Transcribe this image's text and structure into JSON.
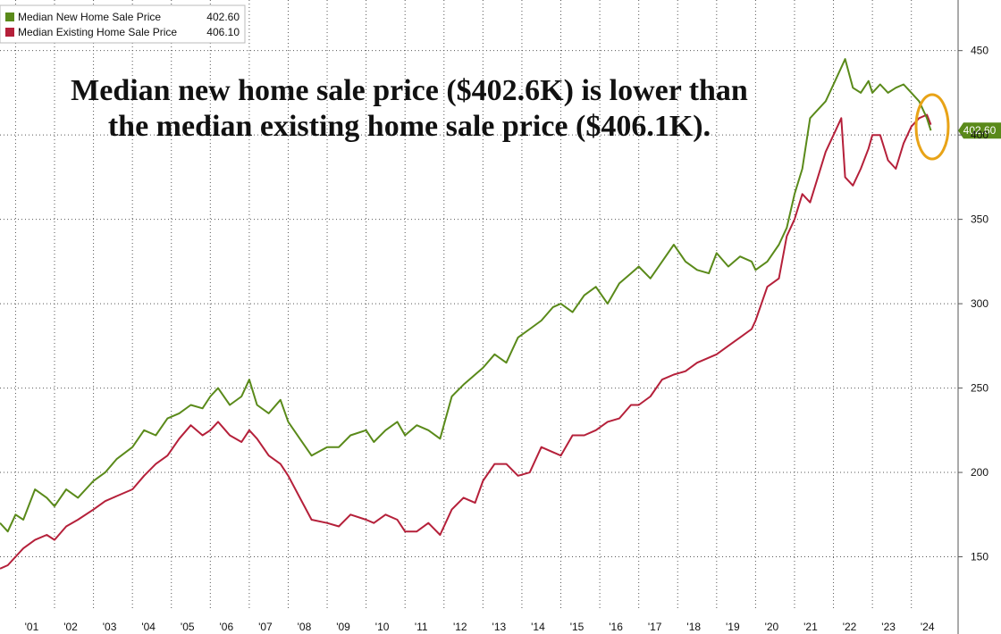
{
  "chart_data": {
    "type": "line",
    "title": "",
    "annotation": [
      "Median new home sale price ($402.6K) is lower than",
      "the median existing home sale price ($406.1K)."
    ],
    "xlabel": "",
    "ylabel": "",
    "ylim": [
      118,
      480
    ],
    "xlim": [
      2000.6,
      2025.2
    ],
    "y_ticks": [
      150,
      200,
      250,
      300,
      350,
      400,
      450
    ],
    "x_ticks": [
      {
        "year": 2001,
        "label": "'01"
      },
      {
        "year": 2002,
        "label": "'02"
      },
      {
        "year": 2003,
        "label": "'03"
      },
      {
        "year": 2004,
        "label": "'04"
      },
      {
        "year": 2005,
        "label": "'05"
      },
      {
        "year": 2006,
        "label": "'06"
      },
      {
        "year": 2007,
        "label": "'07"
      },
      {
        "year": 2008,
        "label": "'08"
      },
      {
        "year": 2009,
        "label": "'09"
      },
      {
        "year": 2010,
        "label": "'10"
      },
      {
        "year": 2011,
        "label": "'11"
      },
      {
        "year": 2012,
        "label": "'12"
      },
      {
        "year": 2013,
        "label": "'13"
      },
      {
        "year": 2014,
        "label": "'14"
      },
      {
        "year": 2015,
        "label": "'15"
      },
      {
        "year": 2016,
        "label": "'16"
      },
      {
        "year": 2017,
        "label": "'17"
      },
      {
        "year": 2018,
        "label": "'18"
      },
      {
        "year": 2019,
        "label": "'19"
      },
      {
        "year": 2020,
        "label": "'20"
      },
      {
        "year": 2021,
        "label": "'21"
      },
      {
        "year": 2022,
        "label": "'22"
      },
      {
        "year": 2023,
        "label": "'23"
      },
      {
        "year": 2024,
        "label": "'24"
      }
    ],
    "legend_position": "top-left",
    "series": [
      {
        "name": "Median New Home Sale Price",
        "last_value_label": "402.60",
        "color": "#5a8a1a",
        "x": [
          2000.6,
          2000.8,
          2001.0,
          2001.2,
          2001.5,
          2001.8,
          2002.0,
          2002.3,
          2002.6,
          2003.0,
          2003.3,
          2003.6,
          2004.0,
          2004.3,
          2004.6,
          2004.9,
          2005.2,
          2005.5,
          2005.8,
          2006.0,
          2006.2,
          2006.5,
          2006.8,
          2007.0,
          2007.2,
          2007.5,
          2007.8,
          2008.0,
          2008.3,
          2008.6,
          2009.0,
          2009.3,
          2009.6,
          2010.0,
          2010.2,
          2010.5,
          2010.8,
          2011.0,
          2011.3,
          2011.6,
          2011.9,
          2012.2,
          2012.5,
          2012.8,
          2013.0,
          2013.3,
          2013.6,
          2013.9,
          2014.2,
          2014.5,
          2014.8,
          2015.0,
          2015.3,
          2015.6,
          2015.9,
          2016.2,
          2016.5,
          2016.8,
          2017.0,
          2017.3,
          2017.6,
          2017.9,
          2018.2,
          2018.5,
          2018.8,
          2019.0,
          2019.3,
          2019.6,
          2019.9,
          2020.0,
          2020.3,
          2020.6,
          2020.8,
          2021.0,
          2021.2,
          2021.4,
          2021.6,
          2021.8,
          2022.0,
          2022.2,
          2022.3,
          2022.5,
          2022.7,
          2022.9,
          2023.0,
          2023.2,
          2023.4,
          2023.6,
          2023.8,
          2024.0,
          2024.2,
          2024.4,
          2024.5
        ],
        "values": [
          170,
          165,
          175,
          172,
          190,
          185,
          180,
          190,
          185,
          195,
          200,
          208,
          215,
          225,
          222,
          232,
          235,
          240,
          238,
          245,
          250,
          240,
          245,
          255,
          240,
          235,
          243,
          230,
          220,
          210,
          215,
          215,
          222,
          225,
          218,
          225,
          230,
          222,
          228,
          225,
          220,
          245,
          252,
          258,
          262,
          270,
          265,
          280,
          285,
          290,
          298,
          300,
          295,
          305,
          310,
          300,
          312,
          318,
          322,
          315,
          325,
          335,
          325,
          320,
          318,
          330,
          322,
          328,
          325,
          320,
          325,
          335,
          345,
          365,
          380,
          410,
          415,
          420,
          430,
          440,
          445,
          428,
          425,
          432,
          425,
          430,
          425,
          428,
          430,
          425,
          420,
          410,
          402.6
        ]
      },
      {
        "name": "Median Existing Home Sale Price",
        "last_value_label": "406.10",
        "color": "#b5203a",
        "x": [
          2000.6,
          2000.8,
          2001.0,
          2001.2,
          2001.5,
          2001.8,
          2002.0,
          2002.3,
          2002.6,
          2003.0,
          2003.3,
          2003.6,
          2004.0,
          2004.3,
          2004.6,
          2004.9,
          2005.2,
          2005.5,
          2005.8,
          2006.0,
          2006.2,
          2006.5,
          2006.8,
          2007.0,
          2007.2,
          2007.5,
          2007.8,
          2008.0,
          2008.3,
          2008.6,
          2009.0,
          2009.3,
          2009.6,
          2010.0,
          2010.2,
          2010.5,
          2010.8,
          2011.0,
          2011.3,
          2011.6,
          2011.9,
          2012.2,
          2012.5,
          2012.8,
          2013.0,
          2013.3,
          2013.6,
          2013.9,
          2014.2,
          2014.5,
          2014.8,
          2015.0,
          2015.3,
          2015.6,
          2015.9,
          2016.2,
          2016.5,
          2016.8,
          2017.0,
          2017.3,
          2017.6,
          2017.9,
          2018.2,
          2018.5,
          2018.8,
          2019.0,
          2019.3,
          2019.6,
          2019.9,
          2020.0,
          2020.3,
          2020.6,
          2020.8,
          2021.0,
          2021.2,
          2021.4,
          2021.6,
          2021.8,
          2022.0,
          2022.2,
          2022.3,
          2022.5,
          2022.7,
          2022.9,
          2023.0,
          2023.2,
          2023.4,
          2023.6,
          2023.8,
          2024.0,
          2024.2,
          2024.4,
          2024.5
        ],
        "values": [
          143,
          145,
          150,
          155,
          160,
          163,
          160,
          168,
          172,
          178,
          183,
          186,
          190,
          198,
          205,
          210,
          220,
          228,
          222,
          225,
          230,
          222,
          218,
          225,
          220,
          210,
          205,
          198,
          185,
          172,
          170,
          168,
          175,
          172,
          170,
          175,
          172,
          165,
          165,
          170,
          163,
          178,
          185,
          182,
          195,
          205,
          205,
          198,
          200,
          215,
          212,
          210,
          222,
          222,
          225,
          230,
          232,
          240,
          240,
          245,
          255,
          258,
          260,
          265,
          268,
          270,
          275,
          280,
          285,
          290,
          310,
          315,
          340,
          350,
          365,
          360,
          375,
          390,
          400,
          410,
          375,
          370,
          380,
          392,
          400,
          400,
          385,
          380,
          395,
          405,
          410,
          412,
          406.1
        ]
      }
    ]
  }
}
